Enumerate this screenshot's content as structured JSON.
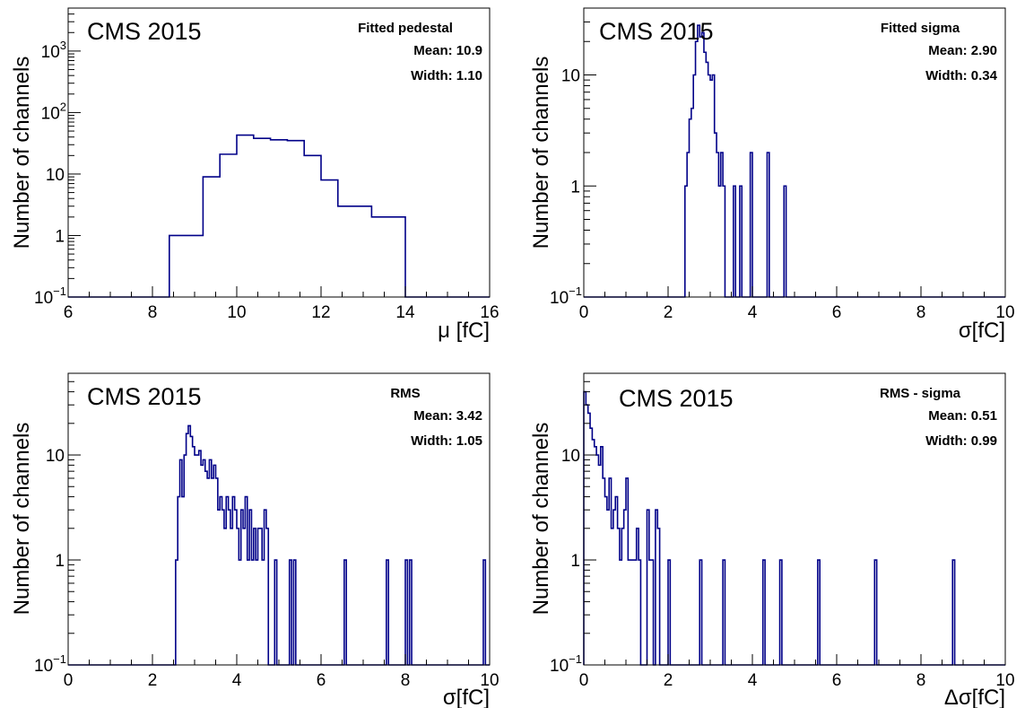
{
  "histogram_color": "#000088",
  "chart_data": [
    {
      "type": "histogram",
      "experiment_label": "CMS 2015",
      "stats": {
        "title": "Fitted pedestal",
        "mean": "Mean: 10.9",
        "width": "Width: 1.10"
      },
      "xlabel": "μ [fC]",
      "ylabel": "Number of channels",
      "xlim": [
        6,
        16
      ],
      "ylim": [
        0.1,
        5000
      ],
      "y_scale": "log",
      "x_ticks": [
        "6",
        "8",
        "10",
        "12",
        "14",
        "16"
      ],
      "y_ticks": [
        {
          "text": "10",
          "exp": "−1"
        },
        {
          "text": "1",
          "exp": ""
        },
        {
          "text": "10",
          "exp": ""
        },
        {
          "text": "10",
          "exp": "2"
        },
        {
          "text": "10",
          "exp": "3"
        }
      ],
      "bins": [
        [
          8.4,
          9.2,
          1
        ],
        [
          9.2,
          9.6,
          9
        ],
        [
          9.6,
          10.0,
          21
        ],
        [
          10.0,
          10.4,
          43
        ],
        [
          10.4,
          10.8,
          38
        ],
        [
          10.8,
          11.2,
          36
        ],
        [
          11.2,
          11.6,
          35
        ],
        [
          11.6,
          12.0,
          20
        ],
        [
          12.0,
          12.4,
          8
        ],
        [
          12.4,
          13.2,
          3
        ],
        [
          13.2,
          14.0,
          2
        ]
      ]
    },
    {
      "type": "histogram",
      "experiment_label": "CMS 2015",
      "stats": {
        "title": "Fitted sigma",
        "mean": "Mean: 2.90",
        "width": "Width: 0.34"
      },
      "xlabel": "σ[fC]",
      "ylabel": "Number of channels",
      "xlim": [
        0,
        10
      ],
      "ylim": [
        0.1,
        40
      ],
      "y_scale": "log",
      "x_ticks": [
        "0",
        "2",
        "4",
        "6",
        "8",
        "10"
      ],
      "y_ticks": [
        {
          "text": "10",
          "exp": "−1"
        },
        {
          "text": "1",
          "exp": ""
        },
        {
          "text": "10",
          "exp": ""
        }
      ],
      "bins": [
        [
          2.4,
          2.45,
          1
        ],
        [
          2.45,
          2.5,
          2
        ],
        [
          2.5,
          2.55,
          4
        ],
        [
          2.55,
          2.6,
          5
        ],
        [
          2.6,
          2.65,
          10
        ],
        [
          2.65,
          2.7,
          20
        ],
        [
          2.7,
          2.75,
          28
        ],
        [
          2.75,
          2.8,
          22
        ],
        [
          2.8,
          2.85,
          24
        ],
        [
          2.85,
          2.9,
          16
        ],
        [
          2.9,
          2.95,
          13
        ],
        [
          2.95,
          3.0,
          10
        ],
        [
          3.0,
          3.05,
          9
        ],
        [
          3.05,
          3.1,
          10
        ],
        [
          3.1,
          3.15,
          3
        ],
        [
          3.15,
          3.2,
          2
        ],
        [
          3.2,
          3.25,
          1
        ],
        [
          3.25,
          3.3,
          2
        ],
        [
          3.3,
          3.35,
          1
        ],
        [
          3.55,
          3.6,
          1
        ],
        [
          3.7,
          3.75,
          1
        ],
        [
          3.95,
          4.0,
          2
        ],
        [
          4.35,
          4.4,
          2
        ],
        [
          4.75,
          4.8,
          1
        ]
      ]
    },
    {
      "type": "histogram",
      "experiment_label": "CMS 2015",
      "stats": {
        "title": "RMS",
        "mean": "Mean: 3.42",
        "width": "Width: 1.05"
      },
      "xlabel": "σ[fC]",
      "ylabel": "Number of channels",
      "xlim": [
        0,
        10
      ],
      "ylim": [
        0.1,
        60
      ],
      "y_scale": "log",
      "x_ticks": [
        "0",
        "2",
        "4",
        "6",
        "8",
        "10"
      ],
      "y_ticks": [
        {
          "text": "10",
          "exp": "−1"
        },
        {
          "text": "1",
          "exp": ""
        },
        {
          "text": "10",
          "exp": ""
        }
      ],
      "bins": [
        [
          2.55,
          2.6,
          1
        ],
        [
          2.6,
          2.65,
          4
        ],
        [
          2.65,
          2.7,
          9
        ],
        [
          2.7,
          2.75,
          4
        ],
        [
          2.75,
          2.8,
          10
        ],
        [
          2.8,
          2.85,
          16
        ],
        [
          2.85,
          2.9,
          19
        ],
        [
          2.9,
          2.95,
          15
        ],
        [
          2.95,
          3.0,
          12
        ],
        [
          3.0,
          3.05,
          10
        ],
        [
          3.05,
          3.1,
          10
        ],
        [
          3.1,
          3.15,
          11
        ],
        [
          3.15,
          3.2,
          8
        ],
        [
          3.2,
          3.25,
          9
        ],
        [
          3.25,
          3.3,
          7
        ],
        [
          3.3,
          3.35,
          6
        ],
        [
          3.35,
          3.4,
          9
        ],
        [
          3.4,
          3.45,
          6
        ],
        [
          3.45,
          3.5,
          8
        ],
        [
          3.5,
          3.55,
          6
        ],
        [
          3.55,
          3.6,
          3
        ],
        [
          3.6,
          3.65,
          4
        ],
        [
          3.65,
          3.7,
          3
        ],
        [
          3.7,
          3.75,
          2
        ],
        [
          3.75,
          3.8,
          4
        ],
        [
          3.8,
          3.85,
          3
        ],
        [
          3.85,
          3.9,
          2
        ],
        [
          3.9,
          3.95,
          4
        ],
        [
          3.95,
          4.0,
          3
        ],
        [
          4.0,
          4.05,
          2
        ],
        [
          4.05,
          4.1,
          1
        ],
        [
          4.1,
          4.15,
          3
        ],
        [
          4.15,
          4.2,
          2
        ],
        [
          4.2,
          4.25,
          4
        ],
        [
          4.25,
          4.3,
          1
        ],
        [
          4.3,
          4.35,
          3
        ],
        [
          4.35,
          4.4,
          1
        ],
        [
          4.4,
          4.45,
          2
        ],
        [
          4.45,
          4.5,
          1
        ],
        [
          4.5,
          4.55,
          2
        ],
        [
          4.55,
          4.6,
          2
        ],
        [
          4.6,
          4.65,
          1
        ],
        [
          4.65,
          4.7,
          3
        ],
        [
          4.7,
          4.75,
          2
        ],
        [
          4.9,
          4.95,
          1
        ],
        [
          5.25,
          5.3,
          1
        ],
        [
          5.35,
          5.4,
          1
        ],
        [
          6.55,
          6.6,
          1
        ],
        [
          7.55,
          7.6,
          1
        ],
        [
          8.0,
          8.05,
          1
        ],
        [
          8.1,
          8.15,
          1
        ],
        [
          9.85,
          9.9,
          1
        ]
      ]
    },
    {
      "type": "histogram",
      "experiment_label": "CMS 2015",
      "stats": {
        "title": "RMS - sigma",
        "mean": "Mean: 0.51",
        "width": "Width: 0.99"
      },
      "xlabel": "Δσ[fC]",
      "ylabel": "Number of channels",
      "xlim": [
        0,
        10
      ],
      "ylim": [
        0.1,
        60
      ],
      "y_scale": "log",
      "x_ticks": [
        "0",
        "2",
        "4",
        "6",
        "8",
        "10"
      ],
      "y_ticks": [
        {
          "text": "10",
          "exp": "−1"
        },
        {
          "text": "1",
          "exp": ""
        },
        {
          "text": "10",
          "exp": ""
        }
      ],
      "bins": [
        [
          0.0,
          0.05,
          40
        ],
        [
          0.05,
          0.1,
          30
        ],
        [
          0.1,
          0.15,
          25
        ],
        [
          0.15,
          0.2,
          18
        ],
        [
          0.2,
          0.25,
          14
        ],
        [
          0.25,
          0.3,
          12
        ],
        [
          0.3,
          0.35,
          10
        ],
        [
          0.35,
          0.4,
          8
        ],
        [
          0.4,
          0.45,
          12
        ],
        [
          0.45,
          0.5,
          6
        ],
        [
          0.5,
          0.55,
          4
        ],
        [
          0.55,
          0.6,
          3
        ],
        [
          0.6,
          0.65,
          6
        ],
        [
          0.65,
          0.7,
          2
        ],
        [
          0.7,
          0.75,
          3
        ],
        [
          0.75,
          0.8,
          4
        ],
        [
          0.8,
          0.85,
          2
        ],
        [
          0.85,
          0.9,
          1
        ],
        [
          0.9,
          0.95,
          2
        ],
        [
          0.95,
          1.0,
          3
        ],
        [
          1.0,
          1.05,
          6
        ],
        [
          1.05,
          1.1,
          1
        ],
        [
          1.1,
          1.15,
          1
        ],
        [
          1.15,
          1.2,
          1
        ],
        [
          1.2,
          1.25,
          1
        ],
        [
          1.25,
          1.3,
          2
        ],
        [
          1.3,
          1.35,
          1
        ],
        [
          1.5,
          1.55,
          3
        ],
        [
          1.55,
          1.6,
          1
        ],
        [
          1.6,
          1.65,
          1
        ],
        [
          1.7,
          1.75,
          3
        ],
        [
          1.75,
          1.8,
          2
        ],
        [
          2.0,
          2.05,
          1
        ],
        [
          2.75,
          2.8,
          1
        ],
        [
          3.3,
          3.35,
          1
        ],
        [
          4.25,
          4.3,
          1
        ],
        [
          4.65,
          4.7,
          1
        ],
        [
          5.55,
          5.6,
          1
        ],
        [
          6.9,
          6.95,
          1
        ],
        [
          8.75,
          8.8,
          1
        ]
      ]
    }
  ]
}
